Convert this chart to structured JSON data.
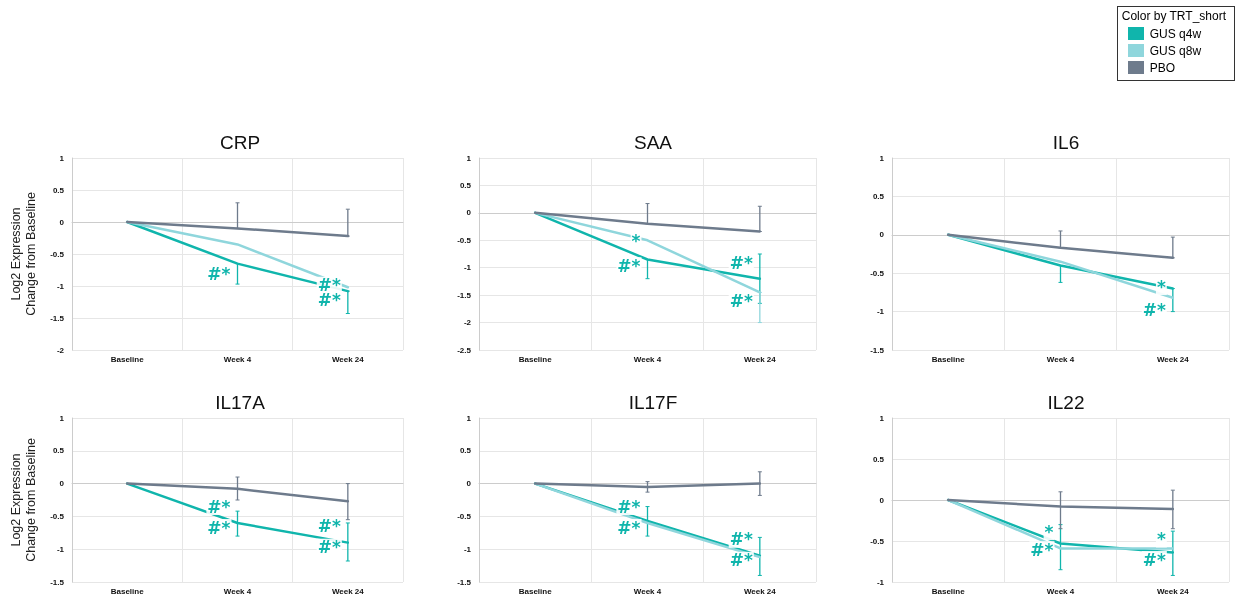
{
  "chart_data": [
    {
      "type": "line",
      "title": "CRP",
      "ylabel": "Log2 Expression\nChange from Baseline",
      "categories": [
        "Baseline",
        "Week 4",
        "Week 24"
      ],
      "ylim": [
        -2,
        1
      ],
      "yticks": [
        -2,
        -1.5,
        -1,
        -0.5,
        0,
        0.5,
        1
      ],
      "grid": true,
      "marker": "none",
      "line_style": "solid",
      "legend": "top right",
      "legend_title": "Color by TRT_short",
      "series": [
        {
          "name": "GUS q4w",
          "color": "#10b5ac",
          "values": [
            0,
            -0.65,
            -1.08
          ],
          "errors": [
            null,
            [
              -0.97,
              -0.65
            ],
            [
              -1.43,
              -1.08
            ]
          ]
        },
        {
          "name": "GUS q8w",
          "color": "#8fd6dc",
          "values": [
            0,
            -0.35,
            -1.02
          ]
        },
        {
          "name": "PBO",
          "color": "#6e7b8c",
          "values": [
            0,
            -0.1,
            -0.22
          ],
          "errors": [
            null,
            [
              -0.1,
              0.3
            ],
            [
              -0.22,
              0.2
            ]
          ]
        }
      ],
      "annotations": [
        {
          "text": "#*",
          "x": "Week 4",
          "y": -0.85
        },
        {
          "text": "#*",
          "x": "Week 24",
          "y": -1.02
        },
        {
          "text": "#*",
          "x": "Week 24",
          "y": -1.25
        }
      ]
    },
    {
      "type": "line",
      "title": "SAA",
      "categories": [
        "Baseline",
        "Week 4",
        "Week 24"
      ],
      "ylim": [
        -2.5,
        1
      ],
      "yticks": [
        -2.5,
        -2,
        -1.5,
        -1,
        -0.5,
        0,
        0.5,
        1
      ],
      "grid": true,
      "marker": "none",
      "line_style": "solid",
      "series": [
        {
          "color": "#10b5ac",
          "values": [
            0,
            -0.85,
            -1.2
          ],
          "errors": [
            null,
            [
              -1.2,
              -0.85
            ],
            [
              -1.65,
              -0.75
            ]
          ]
        },
        {
          "color": "#8fd6dc",
          "values": [
            0,
            -0.5,
            -1.45
          ],
          "errors": [
            null,
            null,
            [
              -2,
              -1.45
            ]
          ]
        },
        {
          "color": "#6e7b8c",
          "values": [
            0,
            -0.2,
            -0.34
          ],
          "errors": [
            null,
            [
              -0.2,
              0.17
            ],
            [
              -0.34,
              0.12
            ]
          ]
        }
      ],
      "annotations": [
        {
          "text": "*",
          "x": "Week 4",
          "y": -0.55
        },
        {
          "text": "#*",
          "x": "Week 4",
          "y": -1.0
        },
        {
          "text": "#*",
          "x": "Week 24",
          "y": -0.95
        },
        {
          "text": "#*",
          "x": "Week 24",
          "y": -1.65
        }
      ]
    },
    {
      "type": "line",
      "title": "IL6",
      "categories": [
        "Baseline",
        "Week 4",
        "Week 24"
      ],
      "ylim": [
        -1.5,
        1
      ],
      "yticks": [
        -1.5,
        -1,
        -0.5,
        0,
        0.5,
        1
      ],
      "grid": true,
      "marker": "none",
      "line_style": "solid",
      "series": [
        {
          "color": "#10b5ac",
          "values": [
            0,
            -0.4,
            -0.7
          ],
          "errors": [
            null,
            [
              -0.62,
              -0.4
            ],
            [
              -1.0,
              -0.7
            ]
          ]
        },
        {
          "color": "#8fd6dc",
          "values": [
            0,
            -0.35,
            -0.82
          ]
        },
        {
          "color": "#6e7b8c",
          "values": [
            0,
            -0.17,
            -0.3
          ],
          "errors": [
            null,
            [
              -0.17,
              0.05
            ],
            [
              -0.3,
              -0.03
            ]
          ]
        }
      ],
      "annotations": [
        {
          "text": "*",
          "x": "Week 24",
          "y": -0.7
        },
        {
          "text": "#*",
          "x": "Week 24",
          "y": -1.0
        }
      ]
    },
    {
      "type": "line",
      "title": "IL17A",
      "ylabel": "Log2 Expression\nChange from Baseline",
      "categories": [
        "Baseline",
        "Week 4",
        "Week 24"
      ],
      "ylim": [
        -1.5,
        1
      ],
      "yticks": [
        -1.5,
        -1,
        -0.5,
        0,
        0.5,
        1
      ],
      "grid": true,
      "marker": "none",
      "line_style": "solid",
      "series": [
        {
          "color": "#10b5ac",
          "values": [
            0,
            -0.6,
            -0.9
          ],
          "errors": [
            null,
            [
              -0.8,
              -0.42
            ],
            [
              -1.18,
              -0.6
            ]
          ]
        },
        {
          "color": "#6e7b8c",
          "values": [
            0,
            -0.08,
            -0.27
          ],
          "errors": [
            null,
            [
              -0.25,
              0.1
            ],
            [
              -0.55,
              0
            ]
          ]
        }
      ],
      "annotations": [
        {
          "text": "#*",
          "x": "Week 4",
          "y": -0.38
        },
        {
          "text": "#*",
          "x": "Week 4",
          "y": -0.7
        },
        {
          "text": "#*",
          "x": "Week 24",
          "y": -0.68
        },
        {
          "text": "#*",
          "x": "Week 24",
          "y": -1.0
        }
      ]
    },
    {
      "type": "line",
      "title": "IL17F",
      "categories": [
        "Baseline",
        "Week 4",
        "Week 24"
      ],
      "ylim": [
        -1.5,
        1
      ],
      "yticks": [
        -1.5,
        -1,
        -0.5,
        0,
        0.5,
        1
      ],
      "grid": true,
      "marker": "none",
      "line_style": "solid",
      "series": [
        {
          "color": "#10b5ac",
          "values": [
            0,
            -0.57,
            -1.1
          ],
          "errors": [
            null,
            [
              -0.8,
              -0.35
            ],
            [
              -1.4,
              -0.82
            ]
          ]
        },
        {
          "color": "#8fd6dc",
          "values": [
            0,
            -0.6,
            -1.12
          ]
        },
        {
          "color": "#6e7b8c",
          "values": [
            0,
            -0.05,
            0
          ],
          "errors": [
            null,
            0.08,
            0.18
          ]
        }
      ],
      "annotations": [
        {
          "text": "#*",
          "x": "Week 4",
          "y": -0.38
        },
        {
          "text": "#*",
          "x": "Week 4",
          "y": -0.7
        },
        {
          "text": "#*",
          "x": "Week 24",
          "y": -0.88
        },
        {
          "text": "#*",
          "x": "Week 24",
          "y": -1.2
        }
      ]
    },
    {
      "type": "line",
      "title": "IL22",
      "categories": [
        "Baseline",
        "Week 4",
        "Week 24"
      ],
      "ylim": [
        -1,
        1
      ],
      "yticks": [
        -1,
        -0.5,
        0,
        0.5,
        1
      ],
      "grid": true,
      "marker": "none",
      "line_style": "solid",
      "series": [
        {
          "color": "#10b5ac",
          "values": [
            0,
            -0.53,
            -0.64
          ],
          "errors": [
            null,
            [
              -0.85,
              -0.3
            ],
            [
              -0.92,
              -0.38
            ]
          ]
        },
        {
          "color": "#8fd6dc",
          "values": [
            0,
            -0.59,
            -0.59
          ]
        },
        {
          "color": "#6e7b8c",
          "values": [
            0,
            -0.08,
            -0.11
          ],
          "errors": [
            null,
            [
              -0.35,
              0.1
            ],
            [
              -0.35,
              0.12
            ]
          ]
        }
      ],
      "annotations": [
        {
          "text": "*",
          "x": "Week 4",
          "y": -0.41
        },
        {
          "text": "#*",
          "x": "Week 4",
          "y": -0.63
        },
        {
          "text": "*",
          "x": "Week 24",
          "y": -0.5
        },
        {
          "text": "#*",
          "x": "Week 24",
          "y": -0.75
        }
      ]
    }
  ]
}
